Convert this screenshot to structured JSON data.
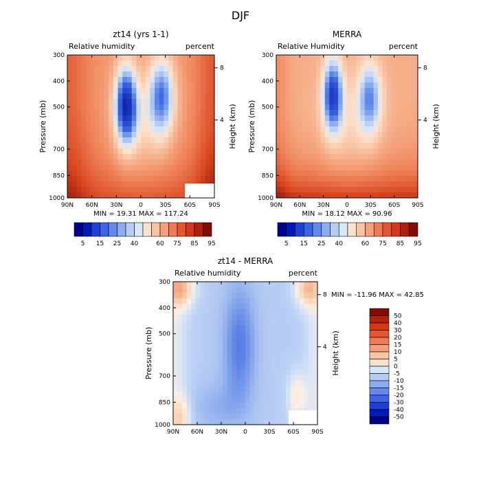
{
  "figure_title": "DJF",
  "chart_data": [
    {
      "type": "heatmap",
      "panel": "top-left",
      "title": "zt14 (yrs 1-1)",
      "left_label": "Relative humidity",
      "right_label": "percent",
      "xlabel": "",
      "ylabel": "Pressure (mb)",
      "y2label": "Height (km)",
      "x_ticks": [
        "90N",
        "60N",
        "30N",
        "0",
        "30S",
        "60S",
        "90S"
      ],
      "y_ticks": [
        "300",
        "400",
        "500",
        "700",
        "850",
        "1000"
      ],
      "y2_ticks": [
        "8",
        "4"
      ],
      "stats_text": "MIN =  19.31   MAX = 117.24",
      "min": 19.31,
      "max": 117.24,
      "colorbar": {
        "orientation": "horizontal",
        "colors": [
          "#00008a",
          "#0018b4",
          "#1e40d6",
          "#3c64e6",
          "#6688ec",
          "#8cacf2",
          "#b4ccf6",
          "#d8e6fa",
          "#fde2cc",
          "#f8c4a4",
          "#f5a07c",
          "#f07a55",
          "#e65530",
          "#d4361a",
          "#b0200c",
          "#820c04"
        ],
        "labels": [
          "5",
          "15",
          "25",
          "40",
          "60",
          "75",
          "85",
          "95"
        ]
      }
    },
    {
      "type": "heatmap",
      "panel": "top-right",
      "title": "MERRA",
      "left_label": "Relative Humidity",
      "right_label": "percent",
      "xlabel": "",
      "ylabel": "Pressure (mb)",
      "y2label": "Height (km)",
      "x_ticks": [
        "90N",
        "60N",
        "30N",
        "0",
        "30S",
        "60S",
        "90S"
      ],
      "y_ticks": [
        "300",
        "400",
        "500",
        "700",
        "850",
        "1000"
      ],
      "y2_ticks": [
        "8",
        "4"
      ],
      "stats_text": "MIN =  18.12   MAX =  90.96",
      "min": 18.12,
      "max": 90.96,
      "colorbar": {
        "orientation": "horizontal",
        "colors": [
          "#00008a",
          "#0018b4",
          "#1e40d6",
          "#3c64e6",
          "#6688ec",
          "#8cacf2",
          "#b4ccf6",
          "#d8e6fa",
          "#fde2cc",
          "#f8c4a4",
          "#f5a07c",
          "#f07a55",
          "#e65530",
          "#d4361a",
          "#b0200c",
          "#820c04"
        ],
        "labels": [
          "5",
          "15",
          "25",
          "40",
          "60",
          "75",
          "85",
          "95"
        ]
      }
    },
    {
      "type": "heatmap",
      "panel": "bottom",
      "title": "zt14 - MERRA",
      "left_label": "Relative humidity",
      "right_label": "percent",
      "xlabel": "",
      "ylabel": "Pressure (mb)",
      "y2label": "Height (km)",
      "x_ticks": [
        "90N",
        "60N",
        "30N",
        "0",
        "30S",
        "60S",
        "90S"
      ],
      "y_ticks": [
        "300",
        "400",
        "500",
        "700",
        "850",
        "1000"
      ],
      "y2_ticks": [
        "8",
        "4"
      ],
      "stats_text": "MIN = -11.96   MAX =  42.85",
      "min": -11.96,
      "max": 42.85,
      "colorbar": {
        "orientation": "vertical",
        "colors": [
          "#820c04",
          "#b0200c",
          "#d4361a",
          "#e65530",
          "#f07a55",
          "#f5a07c",
          "#f8c4a4",
          "#fde2cc",
          "#d8e6fa",
          "#b4ccf6",
          "#8cacf2",
          "#6688ec",
          "#3c64e6",
          "#1e40d6",
          "#0018b4",
          "#00008a"
        ],
        "labels": [
          "50",
          "40",
          "30",
          "20",
          "15",
          "10",
          "5",
          "0",
          "-5",
          "-10",
          "-15",
          "-20",
          "-30",
          "-40",
          "-50"
        ]
      }
    }
  ]
}
